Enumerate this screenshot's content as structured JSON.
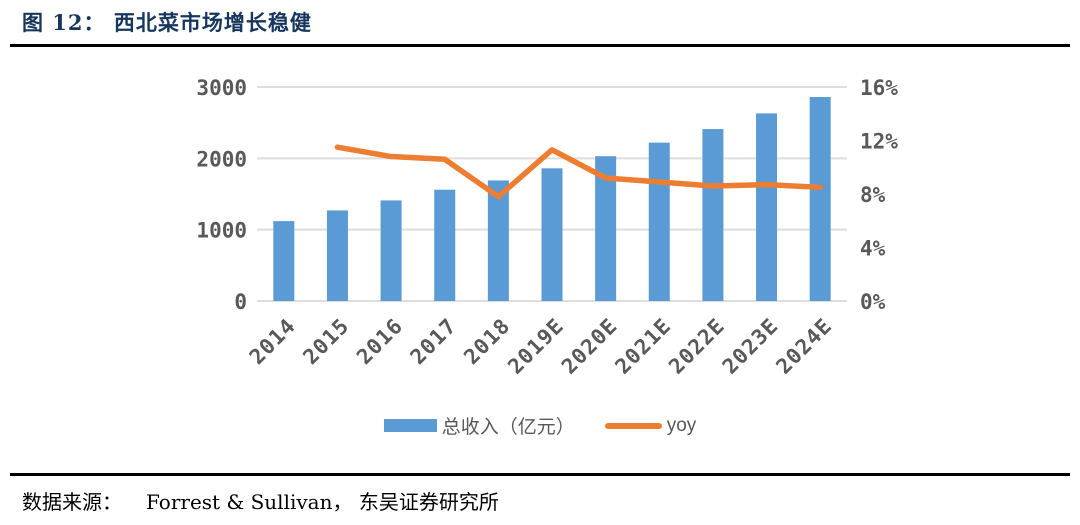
{
  "header": {
    "title": "图 12：  西北菜市场增长稳健"
  },
  "footer": {
    "source_label": "数据来源：",
    "source_text": "Forrest & Sullivan，  东吴证券研究所"
  },
  "legend": {
    "items": [
      {
        "label": "总收入（亿元）",
        "swatch": "bar",
        "color": "#5B9BD5"
      },
      {
        "label": "yoy",
        "swatch": "line",
        "color": "#ED7D31"
      }
    ]
  },
  "chart_data": {
    "type": "bar",
    "subtype": "bar-line-combo",
    "categories": [
      "2014",
      "2015",
      "2016",
      "2017",
      "2018",
      "2019E",
      "2020E",
      "2021E",
      "2022E",
      "2023E",
      "2024E"
    ],
    "series": [
      {
        "name": "总收入（亿元）",
        "type": "bar",
        "axis": "left",
        "color": "#5B9BD5",
        "values": [
          1120,
          1270,
          1410,
          1560,
          1690,
          1860,
          2030,
          2220,
          2410,
          2630,
          2860
        ]
      },
      {
        "name": "yoy",
        "type": "line",
        "axis": "right",
        "color": "#ED7D31",
        "values": [
          null,
          11.5,
          10.8,
          10.6,
          7.8,
          11.3,
          9.2,
          8.9,
          8.6,
          8.7,
          8.5
        ]
      }
    ],
    "left_axis": {
      "min": 0,
      "max": 3000,
      "tick_values": [
        0,
        1000,
        2000,
        3000
      ],
      "tick_labels": [
        "0",
        "1000",
        "2000",
        "3000"
      ]
    },
    "right_axis": {
      "min": 0,
      "max": 16,
      "tick_values": [
        0,
        4,
        8,
        12,
        16
      ],
      "tick_labels": [
        "0%",
        "4%",
        "8%",
        "12%",
        "16%"
      ]
    },
    "grid": true,
    "gridline_color": "#DDDDDD",
    "axis_label_color": "#595959",
    "legend_position": "bottom"
  },
  "colors": {
    "title": "#17365D",
    "bar": "#5B9BD5",
    "line": "#ED7D31",
    "rule": "#000000"
  }
}
